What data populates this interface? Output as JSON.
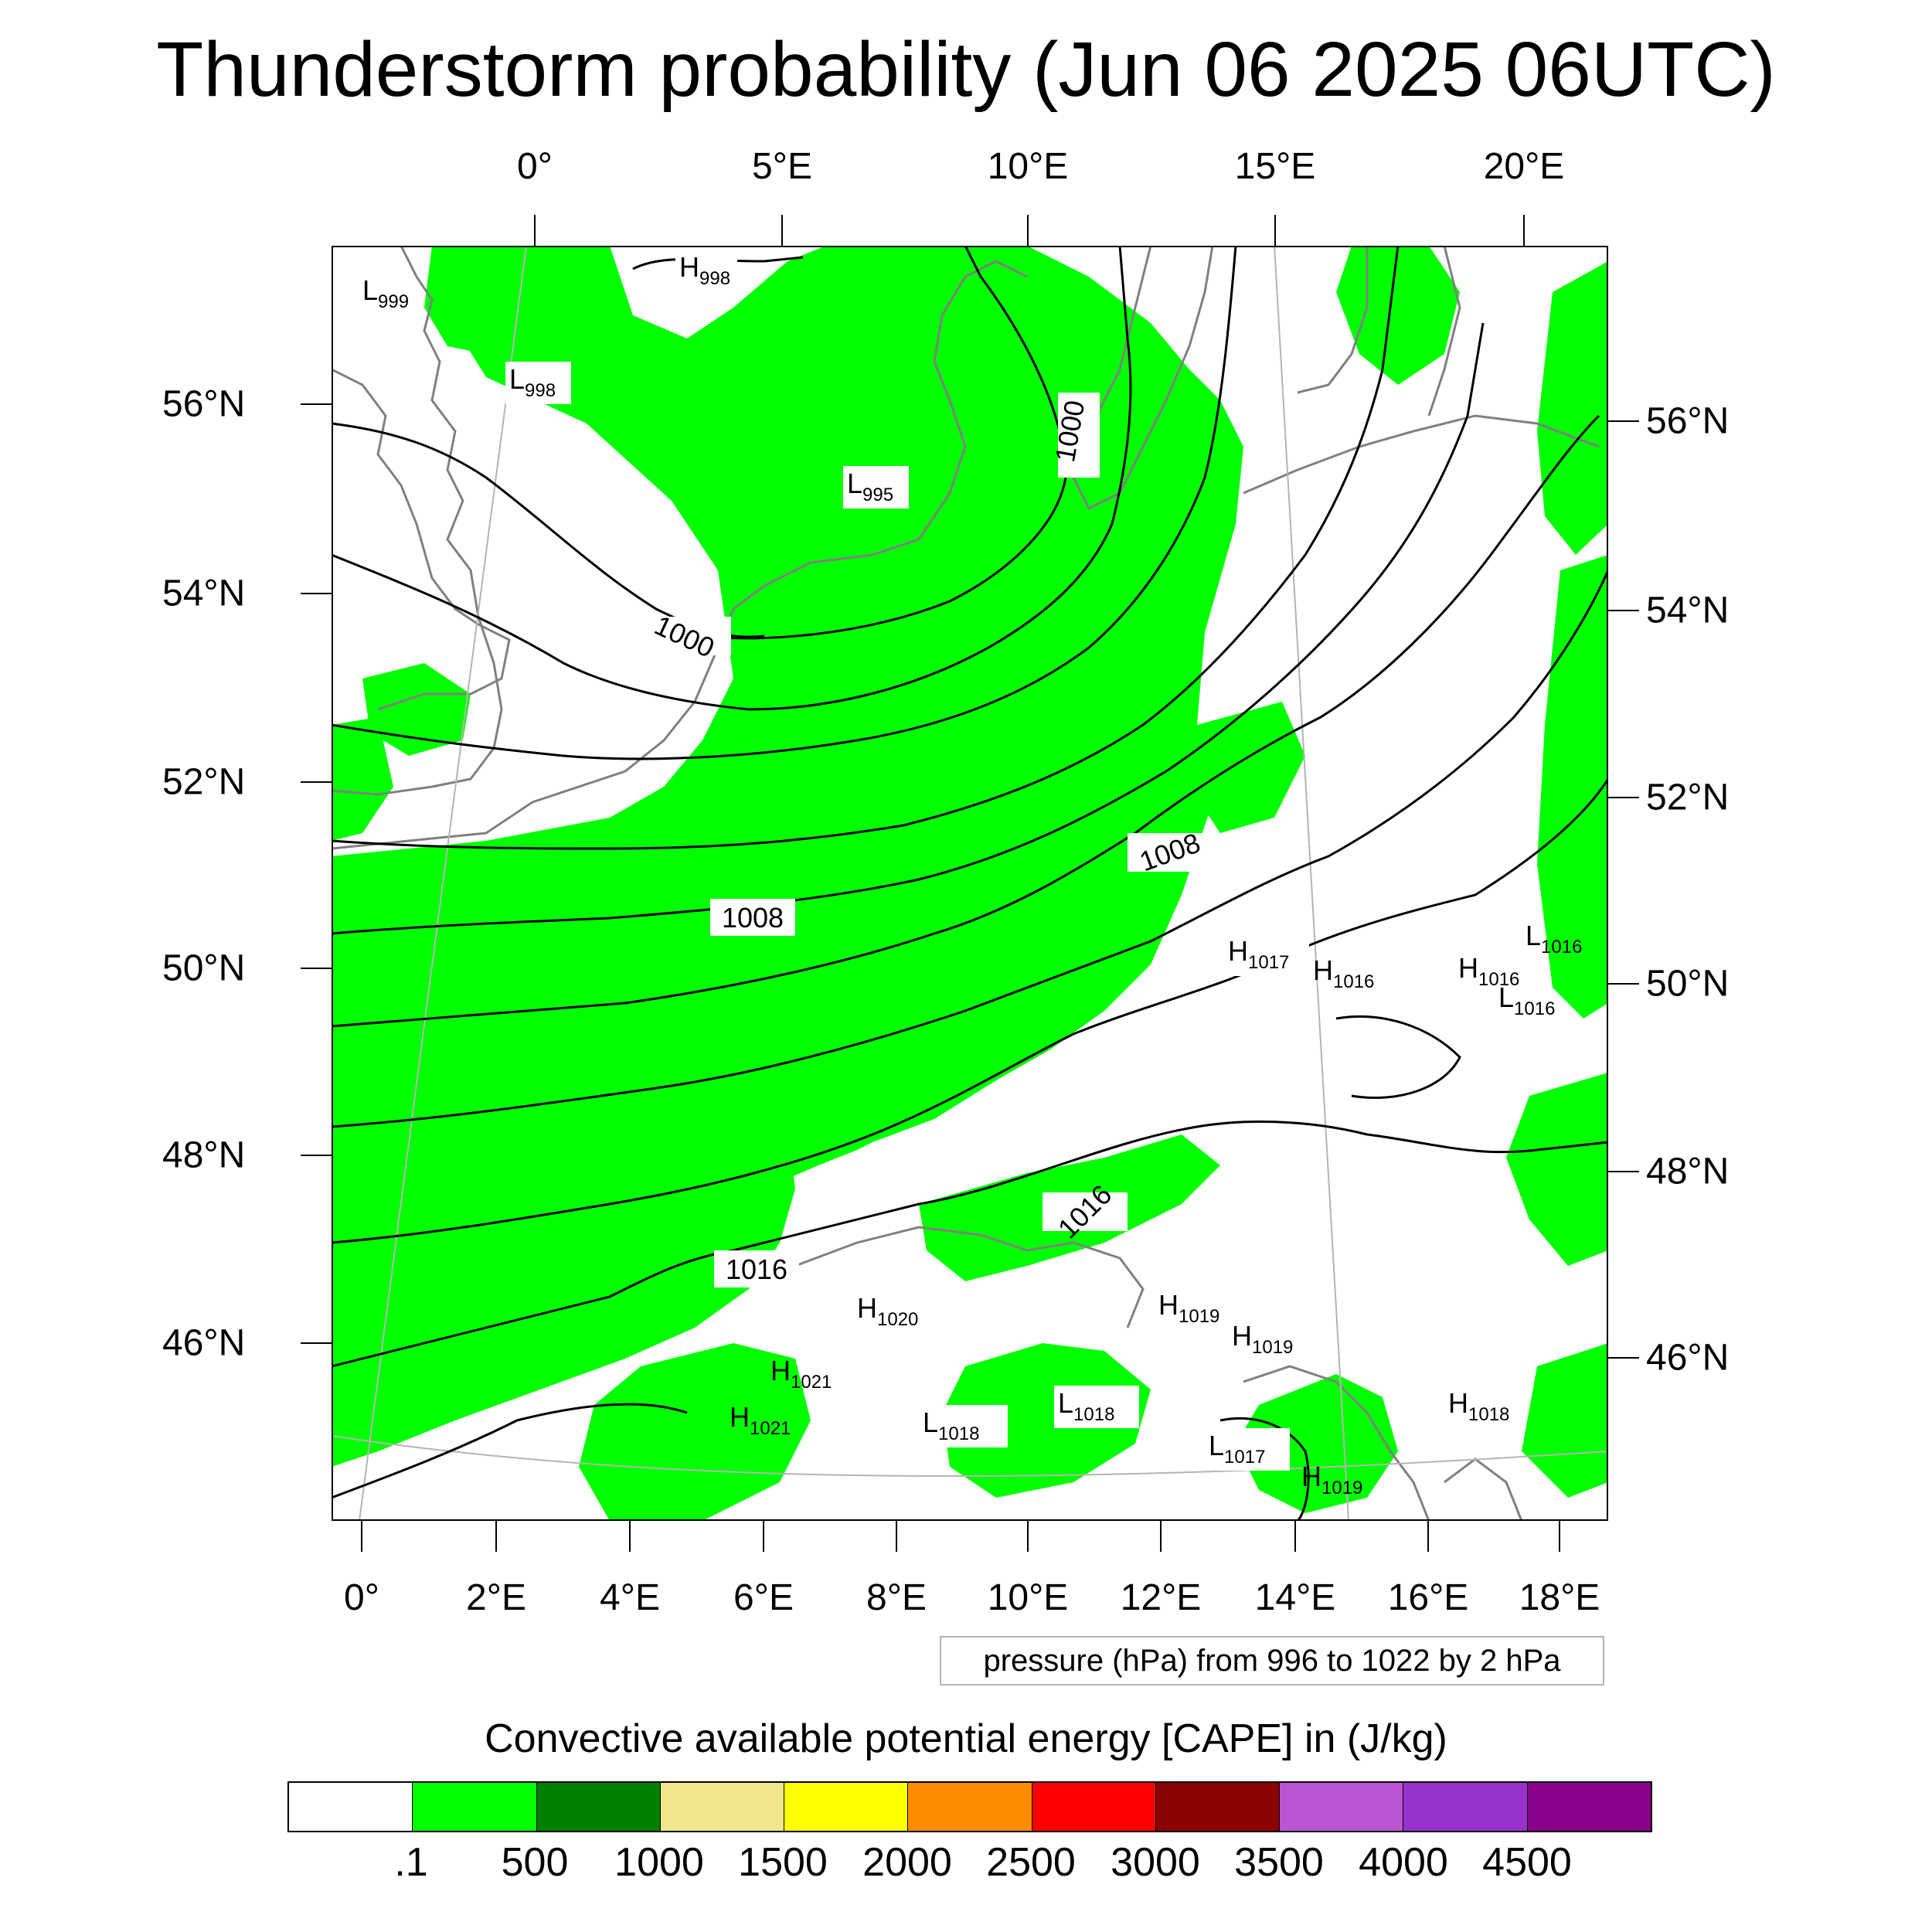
{
  "title": "Thunderstorm probability (Jun 06 2025 06UTC)",
  "top_lon_ticks": [
    "0°",
    "5°E",
    "10°E",
    "15°E",
    "20°E"
  ],
  "bottom_lon_ticks": [
    "0°",
    "2°E",
    "4°E",
    "6°E",
    "8°E",
    "10°E",
    "12°E",
    "14°E",
    "16°E",
    "18°E"
  ],
  "left_lat_ticks": [
    "56°N",
    "54°N",
    "52°N",
    "50°N",
    "48°N",
    "46°N"
  ],
  "right_lat_ticks": [
    "56°N",
    "54°N",
    "52°N",
    "50°N",
    "48°N",
    "46°N"
  ],
  "contour_info": "pressure (hPa) from 996 to 1022 by 2 hPa",
  "colorbar": {
    "title": "Convective available potential energy [CAPE] in (J/kg)",
    "labels": [
      ".1",
      "500",
      "1000",
      "1500",
      "2000",
      "2500",
      "3000",
      "3500",
      "4000",
      "4500"
    ],
    "colors": [
      "#ffffff",
      "#00ff00",
      "#007f00",
      "#f0e68c",
      "#ffff00",
      "#ff8c00",
      "#ff0000",
      "#8b0000",
      "#ba55d3",
      "#9932cc",
      "#8b008b"
    ]
  },
  "isobar_labels": [
    "1000",
    "1000",
    "1008",
    "1008",
    "1016",
    "1016"
  ],
  "pressure_centers": [
    {
      "type": "H",
      "value": "998"
    },
    {
      "type": "L",
      "value": "999"
    },
    {
      "type": "L",
      "value": "998"
    },
    {
      "type": "L",
      "value": "995"
    },
    {
      "type": "H",
      "value": "1017"
    },
    {
      "type": "H",
      "value": "1016"
    },
    {
      "type": "H",
      "value": "1016"
    },
    {
      "type": "L",
      "value": "1016"
    },
    {
      "type": "L",
      "value": "1016"
    },
    {
      "type": "H",
      "value": "1020"
    },
    {
      "type": "H",
      "value": "1021"
    },
    {
      "type": "H",
      "value": "1021"
    },
    {
      "type": "L",
      "value": "1018"
    },
    {
      "type": "L",
      "value": "1018"
    },
    {
      "type": "H",
      "value": "1019"
    },
    {
      "type": "H",
      "value": "1019"
    },
    {
      "type": "L",
      "value": "1017"
    },
    {
      "type": "H",
      "value": "1019"
    },
    {
      "type": "H",
      "value": "1018"
    }
  ],
  "colors": {
    "cape_low": "#00ff00",
    "coast": "#808080",
    "isobar": "#000000",
    "grid": "#b4b4b4"
  }
}
